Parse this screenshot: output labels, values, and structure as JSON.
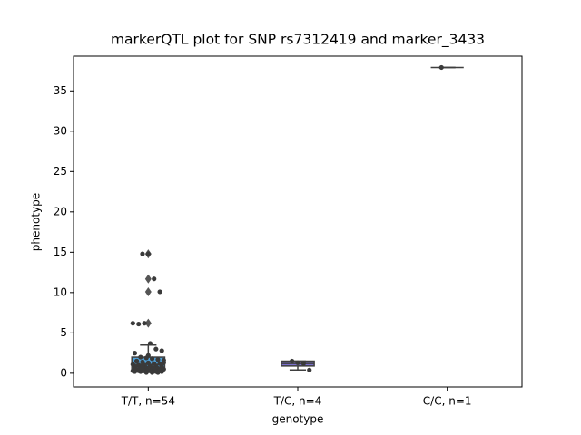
{
  "chart_data": {
    "type": "box",
    "title": "markerQTL plot for SNP rs7312419 and marker_3433",
    "x_label": "genotype",
    "y_label": "phenotype",
    "categories": [
      "T/T, n=54",
      "T/C, n=4",
      "C/C, n=1"
    ],
    "ylim": [
      -1.7,
      39.3
    ],
    "yticks": [
      0,
      5,
      10,
      15,
      20,
      25,
      30,
      35
    ],
    "boxes": [
      {
        "q1": 0.45,
        "median": 1.1,
        "q3": 2.0,
        "whislo": 0.1,
        "whishi": 3.5,
        "fliers": [
          6.2,
          10.1,
          11.7,
          14.8
        ],
        "color": "#4fa3dc"
      },
      {
        "q1": 0.9,
        "median": 1.2,
        "q3": 1.5,
        "whislo": 0.4,
        "whishi": 1.5,
        "fliers": [],
        "color": "#7a6fcc"
      },
      {
        "q1": 37.9,
        "median": 37.9,
        "q3": 37.9,
        "whislo": 37.9,
        "whishi": 37.9,
        "fliers": [],
        "color": "#3f3f3f"
      }
    ],
    "points": [
      [
        14.8,
        14.8,
        11.7,
        10.1,
        6.2,
        6.1,
        6.2,
        3.7,
        3.0,
        2.8,
        2.5,
        2.0,
        1.9,
        1.8,
        1.7,
        1.6,
        1.5,
        1.4,
        1.3,
        1.2,
        1.2,
        1.1,
        1.0,
        1.0,
        0.9,
        0.9,
        0.8,
        0.8,
        0.7,
        0.7,
        0.6,
        0.6,
        0.5,
        0.5,
        0.5,
        0.4,
        0.4,
        0.4,
        0.3,
        0.3,
        0.3,
        0.3,
        0.2,
        0.2,
        0.2,
        0.2,
        0.1,
        0.1,
        0.1,
        1.3,
        1.5,
        0.9,
        2.2,
        0.6
      ],
      [
        1.5,
        1.3,
        1.2,
        0.4
      ],
      [
        37.9
      ]
    ],
    "point_color": "#3a3a3a"
  }
}
